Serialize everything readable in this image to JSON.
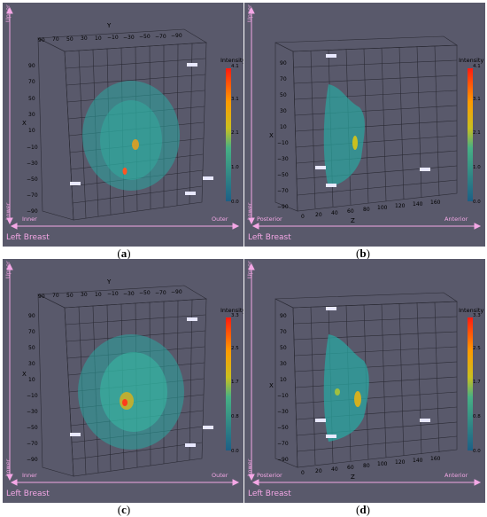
{
  "panels": [
    {
      "id": "a",
      "caption": "a",
      "footer": "Left Breast",
      "left_label": "Inner",
      "right_label": "Outer",
      "top_label": "Upper",
      "bottom_label": "Lower",
      "axis_top_name": "Y",
      "axis_left_name": "X",
      "top_ticks": [
        "90",
        "70",
        "50",
        "30",
        "10",
        "−10",
        "−30",
        "−50",
        "−70",
        "−90"
      ],
      "left_ticks": [
        "90",
        "70",
        "50",
        "30",
        "10",
        "−10",
        "−30",
        "−50",
        "−70",
        "−90"
      ],
      "colorbar": {
        "title": "Intensity",
        "max": "4.1",
        "values": [
          "3.1",
          "2.1",
          "1.0",
          "0.0"
        ]
      }
    },
    {
      "id": "b",
      "caption": "b",
      "footer": "Left Breast",
      "left_label": "Posterior",
      "right_label": "Anterior",
      "top_label": "Upper",
      "bottom_label": "Lower",
      "axis_bottom_name": "Z",
      "axis_left_name": "X",
      "bottom_ticks": [
        "0",
        "20",
        "40",
        "60",
        "80",
        "100",
        "120",
        "140",
        "160"
      ],
      "left_ticks": [
        "90",
        "70",
        "50",
        "30",
        "10",
        "−10",
        "−30",
        "−50",
        "−70",
        "−90"
      ],
      "colorbar": {
        "title": "Intensity",
        "max": "4.1",
        "values": [
          "3.1",
          "2.1",
          "1.0",
          "0.0"
        ]
      }
    },
    {
      "id": "c",
      "caption": "c",
      "footer": "Left Breast",
      "left_label": "Inner",
      "right_label": "Outer",
      "top_label": "Upper",
      "bottom_label": "Lower",
      "axis_top_name": "Y",
      "axis_left_name": "X",
      "top_ticks": [
        "90",
        "70",
        "50",
        "30",
        "10",
        "−10",
        "−30",
        "−50",
        "−70",
        "−90"
      ],
      "left_ticks": [
        "90",
        "70",
        "50",
        "30",
        "10",
        "−10",
        "−30",
        "−50",
        "−70",
        "−90"
      ],
      "colorbar": {
        "title": "Intensity",
        "max": "3.3",
        "values": [
          "2.5",
          "1.7",
          "0.8",
          "0.0"
        ]
      }
    },
    {
      "id": "d",
      "caption": "d",
      "footer": "Left Breast",
      "left_label": "Posterior",
      "right_label": "Anterior",
      "top_label": "Upper",
      "bottom_label": "Lower",
      "axis_bottom_name": "Z",
      "axis_left_name": "X",
      "bottom_ticks": [
        "0",
        "20",
        "40",
        "60",
        "80",
        "100",
        "120",
        "140",
        "160"
      ],
      "left_ticks": [
        "90",
        "70",
        "50",
        "30",
        "10",
        "−10",
        "−30",
        "−50",
        "−70",
        "−90"
      ],
      "colorbar": {
        "title": "Intensity",
        "max": "3.3",
        "values": [
          "2.5",
          "1.7",
          "0.8",
          "0.0"
        ]
      }
    }
  ],
  "colors": {
    "panel_bg": "#59596b",
    "grid": "#2a2a2a",
    "label_pink": "#f4a7e6",
    "volume": "#2aa6a0",
    "hot": "#ff3a1a"
  }
}
